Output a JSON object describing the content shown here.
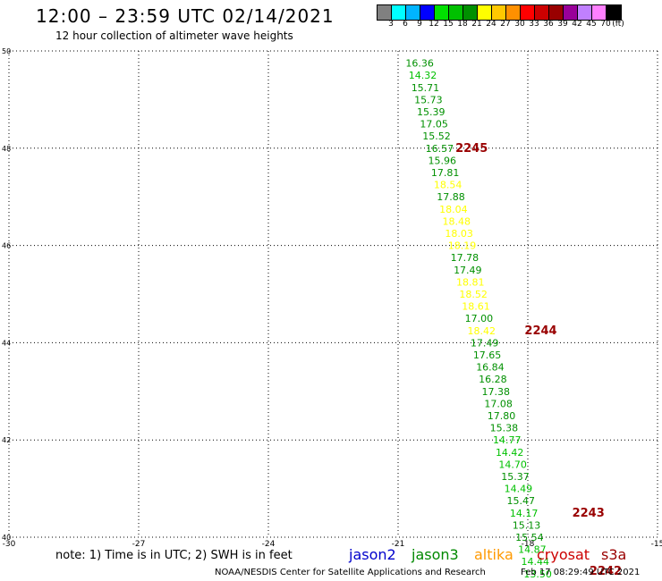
{
  "header": {
    "title": "12:00 – 23:59 UTC 02/14/2021",
    "subtitle": "12 hour collection of altimeter wave heights"
  },
  "colorbar": {
    "colors": [
      "#808080",
      "#00ffff",
      "#00b4ff",
      "#0000ff",
      "#00e000",
      "#00c000",
      "#009000",
      "#ffff00",
      "#ffc800",
      "#ff9000",
      "#ff0000",
      "#cc0000",
      "#990000",
      "#990099",
      "#c080ff",
      "#ff80ff",
      "#000000"
    ],
    "labels": [
      "3",
      "6",
      "9",
      "12",
      "15",
      "18",
      "21",
      "24",
      "27",
      "30",
      "33",
      "36",
      "39",
      "42",
      "45",
      "70"
    ],
    "unit": "(ft)"
  },
  "footer": {
    "note": "note:  1) Time is in UTC;  2) SWH is in feet",
    "credit": "NOAA/NESDIS Center for Satellite Applications and Research",
    "timestamp": "Feb 17 08:29:49 UTC 2021"
  },
  "legend": [
    {
      "name": "jason2",
      "color": "#0000cc"
    },
    {
      "name": "jason3",
      "color": "#008800"
    },
    {
      "name": "altika",
      "color": "#ff9900"
    },
    {
      "name": "cryosat",
      "color": "#cc0000"
    },
    {
      "name": "s3a",
      "color": "#990000"
    }
  ],
  "chart_data": {
    "type": "scatter",
    "xlim": [
      -30,
      -15
    ],
    "ylim": [
      40,
      50
    ],
    "x_ticks": [
      "-30",
      "-27",
      "-24",
      "-21",
      "-18",
      "-15"
    ],
    "y_ticks": [
      "40",
      "42",
      "44",
      "46",
      "48",
      "50"
    ],
    "grid": true,
    "points": [
      {
        "x": -20.5,
        "y": 49.75,
        "label": "16.36"
      },
      {
        "x": -20.43,
        "y": 49.5,
        "label": "14.32"
      },
      {
        "x": -20.37,
        "y": 49.25,
        "label": "15.71"
      },
      {
        "x": -20.3,
        "y": 49.0,
        "label": "15.73"
      },
      {
        "x": -20.24,
        "y": 48.75,
        "label": "15.39"
      },
      {
        "x": -20.17,
        "y": 48.5,
        "label": "17.05"
      },
      {
        "x": -20.11,
        "y": 48.25,
        "label": "15.52"
      },
      {
        "x": -20.04,
        "y": 48.0,
        "label": "16.57"
      },
      {
        "x": -19.98,
        "y": 47.75,
        "label": "15.96"
      },
      {
        "x": -19.91,
        "y": 47.5,
        "label": "17.81"
      },
      {
        "x": -19.85,
        "y": 47.25,
        "label": "18.54"
      },
      {
        "x": -19.78,
        "y": 47.0,
        "label": "17.88"
      },
      {
        "x": -19.72,
        "y": 46.75,
        "label": "18.04"
      },
      {
        "x": -19.65,
        "y": 46.5,
        "label": "18.48"
      },
      {
        "x": -19.59,
        "y": 46.25,
        "label": "18.03"
      },
      {
        "x": -19.52,
        "y": 46.0,
        "label": "18.19"
      },
      {
        "x": -19.46,
        "y": 45.75,
        "label": "17.78"
      },
      {
        "x": -19.39,
        "y": 45.5,
        "label": "17.49"
      },
      {
        "x": -19.33,
        "y": 45.25,
        "label": "18.81"
      },
      {
        "x": -19.26,
        "y": 45.0,
        "label": "18.52"
      },
      {
        "x": -19.2,
        "y": 44.75,
        "label": "18.61"
      },
      {
        "x": -19.13,
        "y": 44.5,
        "label": "17.00"
      },
      {
        "x": -19.07,
        "y": 44.25,
        "label": "18.42"
      },
      {
        "x": -19.0,
        "y": 44.0,
        "label": "17.49"
      },
      {
        "x": -18.94,
        "y": 43.75,
        "label": "17.65"
      },
      {
        "x": -18.87,
        "y": 43.5,
        "label": "16.84"
      },
      {
        "x": -18.81,
        "y": 43.25,
        "label": "16.28"
      },
      {
        "x": -18.74,
        "y": 43.0,
        "label": "17.38"
      },
      {
        "x": -18.68,
        "y": 42.75,
        "label": "17.08"
      },
      {
        "x": -18.61,
        "y": 42.5,
        "label": "17.80"
      },
      {
        "x": -18.55,
        "y": 42.25,
        "label": "15.38"
      },
      {
        "x": -18.48,
        "y": 42.0,
        "label": "14.77"
      },
      {
        "x": -18.42,
        "y": 41.75,
        "label": "14.42"
      },
      {
        "x": -18.35,
        "y": 41.5,
        "label": "14.70"
      },
      {
        "x": -18.29,
        "y": 41.25,
        "label": "15.37"
      },
      {
        "x": -18.22,
        "y": 41.0,
        "label": "14.49"
      },
      {
        "x": -18.16,
        "y": 40.75,
        "label": "15.47"
      },
      {
        "x": -18.09,
        "y": 40.5,
        "label": "14.17"
      },
      {
        "x": -18.03,
        "y": 40.25,
        "label": "15.13"
      },
      {
        "x": -17.96,
        "y": 40.0,
        "label": "15.54"
      },
      {
        "x": -17.9,
        "y": 39.75,
        "label": "14.87"
      },
      {
        "x": -17.83,
        "y": 39.5,
        "label": "14.44"
      },
      {
        "x": -17.77,
        "y": 39.25,
        "label": "13.50"
      }
    ],
    "pass_times": [
      {
        "x": -19.3,
        "y": 48.0,
        "label": "2245"
      },
      {
        "x": -17.7,
        "y": 44.25,
        "label": "2244"
      },
      {
        "x": -16.6,
        "y": 40.5,
        "label": "2243"
      },
      {
        "x": -16.2,
        "y": 39.3,
        "label": "2242"
      }
    ]
  }
}
